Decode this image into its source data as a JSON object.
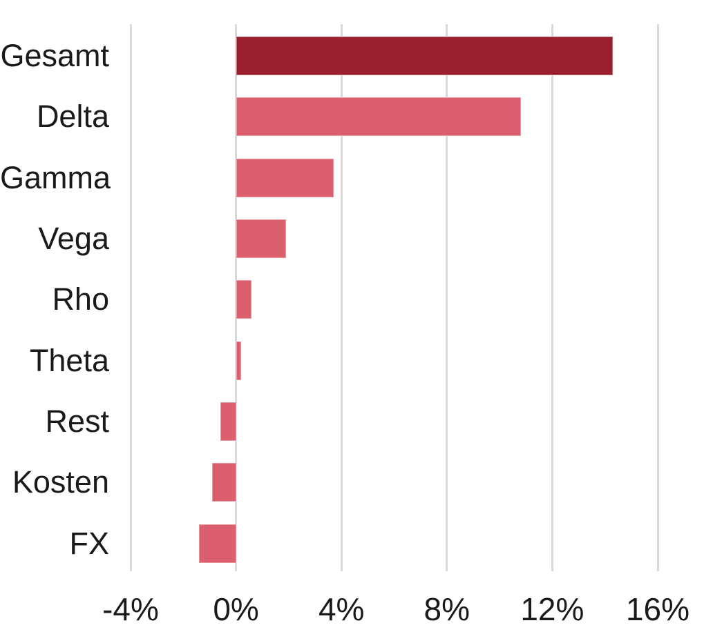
{
  "chart_data": {
    "type": "bar",
    "orientation": "horizontal",
    "title": "",
    "xlabel": "",
    "ylabel": "",
    "unit": "%",
    "categories": [
      "Gesamt",
      "Delta",
      "Gamma",
      "Vega",
      "Rho",
      "Theta",
      "Rest",
      "Kosten",
      "FX"
    ],
    "values": [
      14.3,
      10.8,
      3.7,
      1.9,
      0.6,
      0.2,
      -0.6,
      -0.9,
      -1.4
    ],
    "highlight_category": "Gesamt",
    "x_ticks": [
      {
        "value": -4,
        "label": "-4%"
      },
      {
        "value": 0,
        "label": "0%"
      },
      {
        "value": 4,
        "label": "4%"
      },
      {
        "value": 8,
        "label": "8%"
      },
      {
        "value": 12,
        "label": "12%"
      },
      {
        "value": 16,
        "label": "16%"
      }
    ],
    "xlim": [
      -4,
      16
    ],
    "grid": "vertical",
    "legend": "none",
    "colors": {
      "highlight_bar": "#9A1F2D",
      "bar": "#DC5F6E",
      "gridline": "#D9D9D9",
      "text": "#1A1A1A"
    }
  }
}
